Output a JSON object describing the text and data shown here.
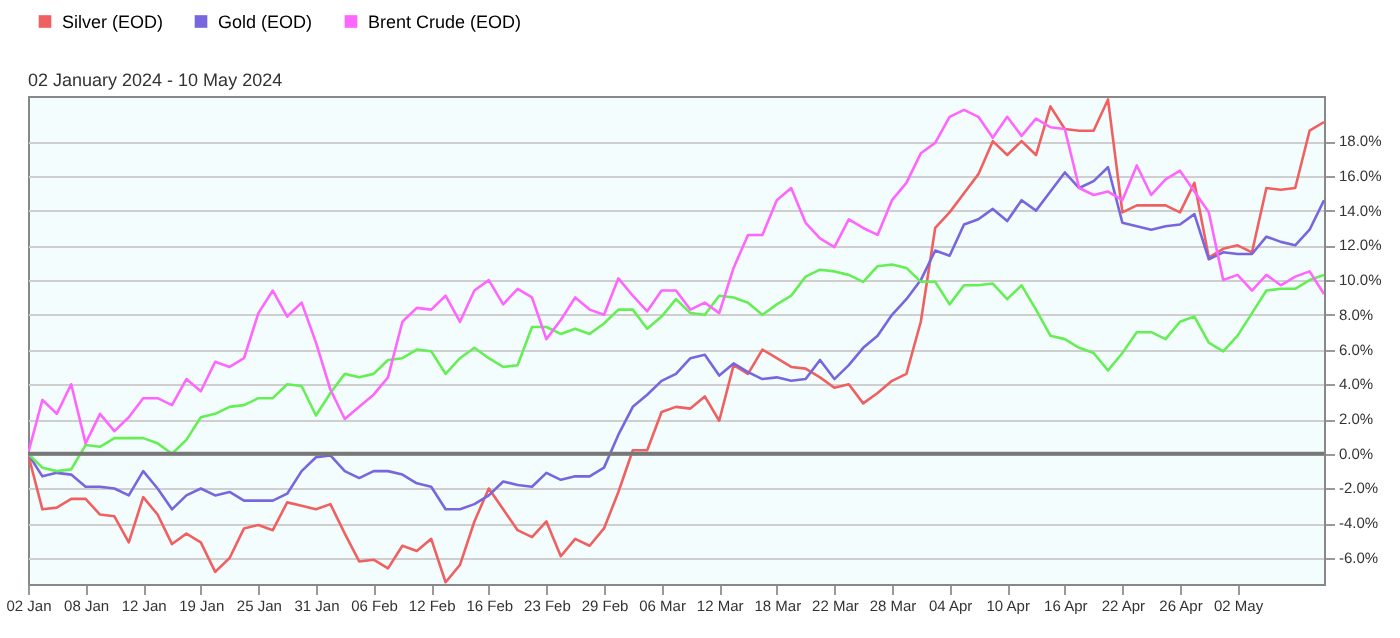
{
  "chart_data": {
    "type": "line",
    "subtitle": "02 January 2024 - 10 May 2024",
    "categories": [
      "02 Jan",
      null,
      null,
      null,
      "08 Jan",
      null,
      null,
      null,
      "12 Jan",
      null,
      null,
      null,
      "19 Jan",
      null,
      null,
      null,
      "25 Jan",
      null,
      null,
      null,
      "31 Jan",
      null,
      null,
      null,
      "06 Feb",
      null,
      null,
      null,
      "12 Feb",
      null,
      null,
      null,
      "16 Feb",
      null,
      null,
      null,
      "23 Feb",
      null,
      null,
      null,
      "29 Feb",
      null,
      null,
      null,
      "06 Mar",
      null,
      null,
      null,
      "12 Mar",
      null,
      null,
      null,
      "18 Mar",
      null,
      null,
      null,
      "22 Mar",
      null,
      null,
      null,
      "28 Mar",
      null,
      null,
      null,
      "04 Apr",
      null,
      null,
      null,
      "10 Apr",
      null,
      null,
      null,
      "16 Apr",
      null,
      null,
      null,
      "22 Apr",
      null,
      null,
      null,
      "26 Apr",
      null,
      null,
      null,
      "02 May",
      null,
      null,
      null,
      null,
      null,
      null
    ],
    "ylim": [
      -7.5,
      20.6
    ],
    "yticks": [
      {
        "value": -6,
        "label": "-6.0%"
      },
      {
        "value": -4,
        "label": "-4.0%"
      },
      {
        "value": -2,
        "label": "-2.0%"
      },
      {
        "value": 0,
        "label": "0.0%"
      },
      {
        "value": 2,
        "label": "2.0%"
      },
      {
        "value": 4,
        "label": "4.0%"
      },
      {
        "value": 6,
        "label": "6.0%"
      },
      {
        "value": 8,
        "label": "8.0%"
      },
      {
        "value": 10,
        "label": "10.0%"
      },
      {
        "value": 12,
        "label": "12.0%"
      },
      {
        "value": 14,
        "label": "14.0%"
      },
      {
        "value": 16,
        "label": "16.0%"
      },
      {
        "value": 18,
        "label": "18.0%"
      }
    ],
    "grid": "y",
    "legend": "top left",
    "ref_lines": [
      {
        "axis": "y",
        "value": 0,
        "color": "#777777"
      }
    ],
    "series": [
      {
        "name": "Silver (EOD)",
        "color": "#f06060",
        "values": [
          0,
          -3.2,
          -3.1,
          -2.6,
          -2.6,
          -3.5,
          -3.6,
          -5.1,
          -2.5,
          -3.5,
          -5.2,
          -4.6,
          -5.1,
          -6.8,
          -6.0,
          -4.3,
          -4.1,
          -4.4,
          -2.8,
          -3.0,
          -3.2,
          -2.9,
          -4.6,
          -6.2,
          -6.1,
          -6.6,
          -5.3,
          -5.6,
          -4.9,
          -7.4,
          -6.4,
          -3.9,
          -2.0,
          -3.2,
          -4.4,
          -4.8,
          -3.9,
          -5.9,
          -4.9,
          -5.3,
          -4.3,
          -2.2,
          0.2,
          0.2,
          2.4,
          2.7,
          2.6,
          3.3,
          1.9,
          5.1,
          4.6,
          6.0,
          5.5,
          5.0,
          4.9,
          4.4,
          3.8,
          4.0,
          2.9,
          3.5,
          4.2,
          4.6,
          7.6,
          13.0,
          13.9,
          15.0,
          16.1,
          18.0,
          17.2,
          18.0,
          17.2,
          20.0,
          18.7,
          18.6,
          18.6,
          20.4,
          13.9,
          14.3,
          14.3,
          14.3,
          13.9,
          15.6,
          11.3,
          11.8,
          12.0,
          11.6,
          15.3,
          15.2,
          15.3,
          18.6,
          19.1
        ]
      },
      {
        "name": "Gold (EOD)",
        "color": "#7766dd",
        "values": [
          0,
          -1.3,
          -1.1,
          -1.2,
          -1.9,
          -1.9,
          -2.0,
          -2.4,
          -1.0,
          -2.0,
          -3.2,
          -2.4,
          -2.0,
          -2.4,
          -2.2,
          -2.7,
          -2.7,
          -2.7,
          -2.3,
          -1.0,
          -0.2,
          -0.1,
          -1.0,
          -1.4,
          -1.0,
          -1.0,
          -1.2,
          -1.7,
          -1.9,
          -3.2,
          -3.2,
          -2.9,
          -2.4,
          -1.6,
          -1.8,
          -1.9,
          -1.1,
          -1.5,
          -1.3,
          -1.3,
          -0.8,
          1.1,
          2.7,
          3.4,
          4.2,
          4.6,
          5.5,
          5.7,
          4.5,
          5.2,
          4.7,
          4.3,
          4.4,
          4.2,
          4.3,
          5.4,
          4.3,
          5.1,
          6.1,
          6.8,
          8.0,
          8.9,
          10.0,
          11.7,
          11.4,
          13.2,
          13.5,
          14.1,
          13.4,
          14.6,
          14.0,
          15.1,
          16.2,
          15.3,
          15.7,
          16.5,
          13.3,
          13.1,
          12.9,
          13.1,
          13.2,
          13.8,
          11.2,
          11.6,
          11.5,
          11.5,
          12.5,
          12.2,
          12.0,
          12.9,
          14.6
        ]
      },
      {
        "color": "#66ee55",
        "values": [
          0,
          -0.8,
          -1.0,
          -0.9,
          0.5,
          0.4,
          0.9,
          0.9,
          0.9,
          0.6,
          0,
          0.8,
          2.1,
          2.3,
          2.7,
          2.8,
          3.2,
          3.2,
          4.0,
          3.9,
          2.2,
          3.5,
          4.6,
          4.4,
          4.6,
          5.4,
          5.5,
          6.0,
          5.9,
          4.6,
          5.5,
          6.1,
          5.5,
          5.0,
          5.1,
          7.3,
          7.3,
          6.9,
          7.2,
          6.9,
          7.5,
          8.3,
          8.3,
          7.2,
          7.9,
          8.9,
          8.1,
          8.0,
          9.1,
          9.0,
          8.7,
          8.0,
          8.6,
          9.1,
          10.2,
          10.6,
          10.5,
          10.3,
          9.9,
          10.8,
          10.9,
          10.7,
          9.9,
          9.9,
          8.6,
          9.7,
          9.7,
          9.8,
          8.9,
          9.7,
          8.3,
          6.8,
          6.6,
          6.1,
          5.8,
          4.8,
          5.8,
          7.0,
          7.0,
          6.6,
          7.6,
          7.9,
          6.4,
          5.9,
          6.8,
          8.1,
          9.4,
          9.5,
          9.5,
          10.0,
          10.3
        ]
      },
      {
        "name": "Brent Crude (EOD)",
        "color": "#ff66ff",
        "values": [
          0,
          3.1,
          2.3,
          4.0,
          0.6,
          2.3,
          1.3,
          2.1,
          3.2,
          3.2,
          2.8,
          4.3,
          3.6,
          5.3,
          5.0,
          5.5,
          8.1,
          9.4,
          7.9,
          8.7,
          6.4,
          3.7,
          2.0,
          2.7,
          3.4,
          4.4,
          7.6,
          8.4,
          8.3,
          9.1,
          7.6,
          9.4,
          10.0,
          8.6,
          9.5,
          9.0,
          6.6,
          7.7,
          9.0,
          8.3,
          8.0,
          10.1,
          9.1,
          8.2,
          9.4,
          9.4,
          8.3,
          8.7,
          8.1,
          10.7,
          12.6,
          12.6,
          14.6,
          15.3,
          13.3,
          12.4,
          11.9,
          13.5,
          13.0,
          12.6,
          14.6,
          15.6,
          17.3,
          17.9,
          19.4,
          19.8,
          19.4,
          18.2,
          19.4,
          18.3,
          19.3,
          18.8,
          18.7,
          15.3,
          14.9,
          15.1,
          14.6,
          16.6,
          14.9,
          15.8,
          16.3,
          15.1,
          13.9,
          10.0,
          10.3,
          9.4,
          10.3,
          9.7,
          10.2,
          10.5,
          9.2
        ]
      }
    ]
  }
}
